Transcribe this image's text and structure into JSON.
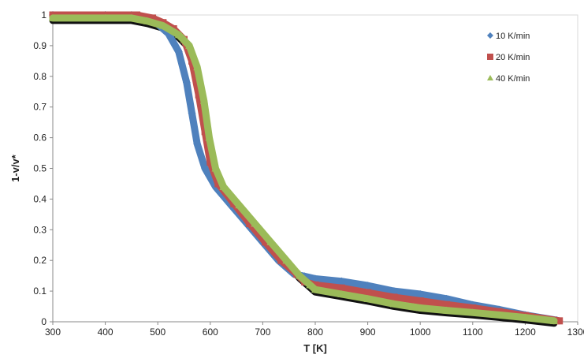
{
  "chart_data": {
    "type": "scatter",
    "xlabel": "T [K]",
    "ylabel": "1-v/v*",
    "xlim": [
      300,
      1300
    ],
    "ylim": [
      0,
      1
    ],
    "xticks": [
      "300",
      "400",
      "500",
      "600",
      "700",
      "800",
      "900",
      "1000",
      "1100",
      "1200",
      "1300"
    ],
    "yticks": [
      "0",
      "0.1",
      "0.2",
      "0.3",
      "0.4",
      "0.5",
      "0.6",
      "0.7",
      "0.8",
      "0.9",
      "1"
    ],
    "grid": false,
    "legend_position": "top-right",
    "series": [
      {
        "name": "10 K/min",
        "color": "#4F81BD",
        "marker": "diamond",
        "points": [
          [
            300,
            1.0
          ],
          [
            400,
            1.0
          ],
          [
            450,
            1.0
          ],
          [
            480,
            0.99
          ],
          [
            500,
            0.97
          ],
          [
            520,
            0.94
          ],
          [
            540,
            0.88
          ],
          [
            555,
            0.78
          ],
          [
            565,
            0.68
          ],
          [
            575,
            0.58
          ],
          [
            590,
            0.5
          ],
          [
            610,
            0.44
          ],
          [
            640,
            0.38
          ],
          [
            670,
            0.32
          ],
          [
            700,
            0.26
          ],
          [
            730,
            0.2
          ],
          [
            760,
            0.155
          ],
          [
            780,
            0.148
          ],
          [
            800,
            0.14
          ],
          [
            850,
            0.132
          ],
          [
            900,
            0.118
          ],
          [
            950,
            0.1
          ],
          [
            1000,
            0.09
          ],
          [
            1050,
            0.075
          ],
          [
            1100,
            0.055
          ],
          [
            1150,
            0.04
          ],
          [
            1200,
            0.022
          ],
          [
            1260,
            0.005
          ]
        ]
      },
      {
        "name": "20 K/min",
        "color": "#C0504D",
        "marker": "square",
        "points": [
          [
            300,
            1.0
          ],
          [
            400,
            1.0
          ],
          [
            460,
            1.0
          ],
          [
            490,
            0.99
          ],
          [
            510,
            0.975
          ],
          [
            530,
            0.955
          ],
          [
            550,
            0.92
          ],
          [
            565,
            0.85
          ],
          [
            578,
            0.74
          ],
          [
            590,
            0.62
          ],
          [
            600,
            0.52
          ],
          [
            615,
            0.45
          ],
          [
            645,
            0.385
          ],
          [
            675,
            0.32
          ],
          [
            705,
            0.26
          ],
          [
            735,
            0.2
          ],
          [
            765,
            0.155
          ],
          [
            780,
            0.13
          ],
          [
            800,
            0.12
          ],
          [
            850,
            0.11
          ],
          [
            900,
            0.095
          ],
          [
            950,
            0.08
          ],
          [
            1000,
            0.068
          ],
          [
            1050,
            0.056
          ],
          [
            1100,
            0.045
          ],
          [
            1150,
            0.033
          ],
          [
            1200,
            0.02
          ],
          [
            1265,
            0.003
          ]
        ]
      },
      {
        "name": "40 K/min",
        "color": "#9BBB59",
        "marker": "triangle",
        "points": [
          [
            300,
            0.99
          ],
          [
            400,
            0.99
          ],
          [
            450,
            0.99
          ],
          [
            480,
            0.98
          ],
          [
            510,
            0.965
          ],
          [
            540,
            0.935
          ],
          [
            560,
            0.9
          ],
          [
            575,
            0.83
          ],
          [
            588,
            0.72
          ],
          [
            598,
            0.6
          ],
          [
            610,
            0.5
          ],
          [
            625,
            0.44
          ],
          [
            655,
            0.38
          ],
          [
            685,
            0.32
          ],
          [
            715,
            0.26
          ],
          [
            745,
            0.2
          ],
          [
            770,
            0.15
          ],
          [
            790,
            0.12
          ],
          [
            800,
            0.105
          ],
          [
            850,
            0.09
          ],
          [
            900,
            0.075
          ],
          [
            950,
            0.058
          ],
          [
            1000,
            0.045
          ],
          [
            1050,
            0.037
          ],
          [
            1100,
            0.03
          ],
          [
            1150,
            0.022
          ],
          [
            1200,
            0.014
          ],
          [
            1255,
            0.003
          ]
        ]
      }
    ]
  }
}
